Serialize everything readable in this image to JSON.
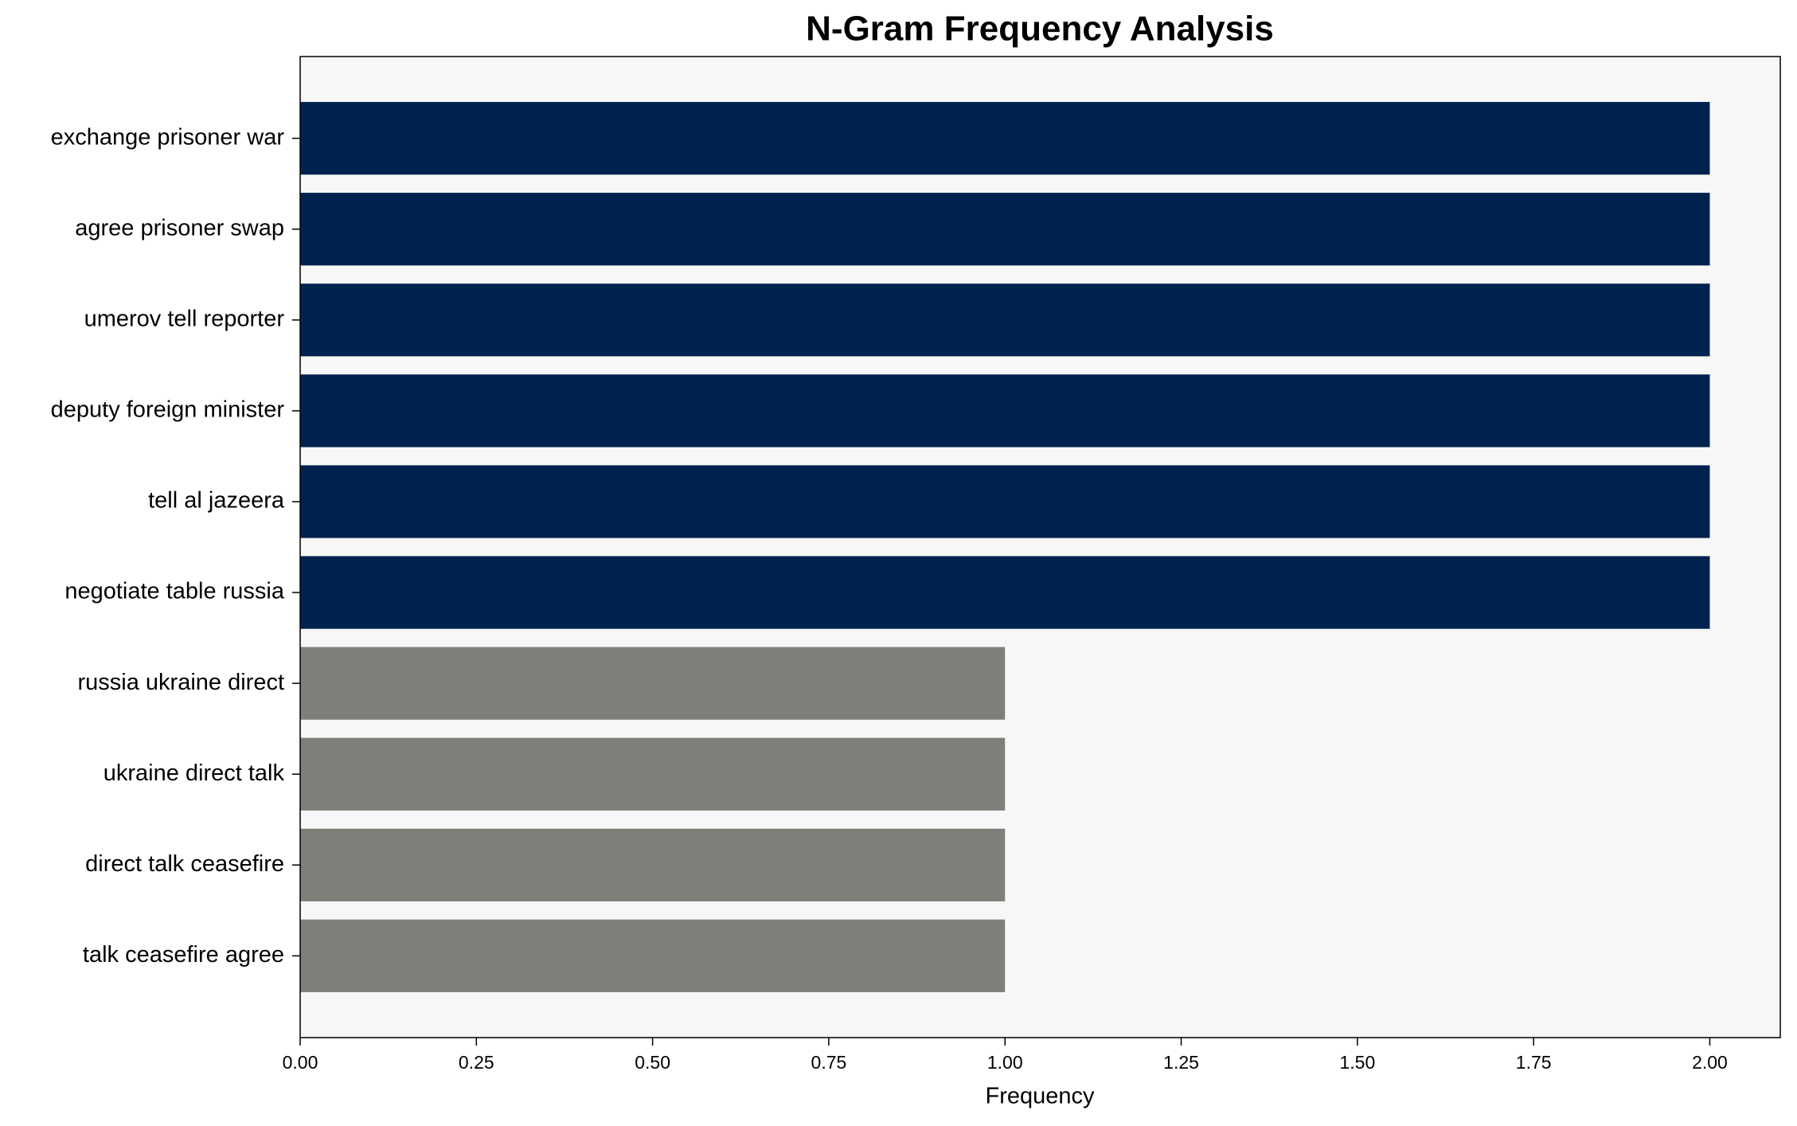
{
  "chart_data": {
    "type": "barh",
    "title": "N-Gram Frequency Analysis",
    "xlabel": "Frequency",
    "categories": [
      "exchange prisoner war",
      "agree prisoner swap",
      "umerov tell reporter",
      "deputy foreign minister",
      "tell al jazeera",
      "negotiate table russia",
      "russia ukraine direct",
      "ukraine direct talk",
      "direct talk ceasefire",
      "talk ceasefire agree"
    ],
    "values": [
      2,
      2,
      2,
      2,
      2,
      2,
      1,
      1,
      1,
      1
    ],
    "colors": [
      "#00224e",
      "#00224e",
      "#00224e",
      "#00224e",
      "#00224e",
      "#00224e",
      "#7f7e79",
      "#7f7e79",
      "#7f7e79",
      "#7f7e79"
    ],
    "xlim": [
      0,
      2.1
    ],
    "xticks": [
      {
        "value": 0,
        "label": "0.00"
      },
      {
        "value": 0.25,
        "label": "0.25"
      },
      {
        "value": 0.5,
        "label": "0.50"
      },
      {
        "value": 0.75,
        "label": "0.75"
      },
      {
        "value": 1,
        "label": "1.00"
      },
      {
        "value": 1.25,
        "label": "1.25"
      },
      {
        "value": 1.5,
        "label": "1.50"
      },
      {
        "value": 1.75,
        "label": "1.75"
      },
      {
        "value": 2,
        "label": "2.00"
      }
    ],
    "grid": false
  }
}
